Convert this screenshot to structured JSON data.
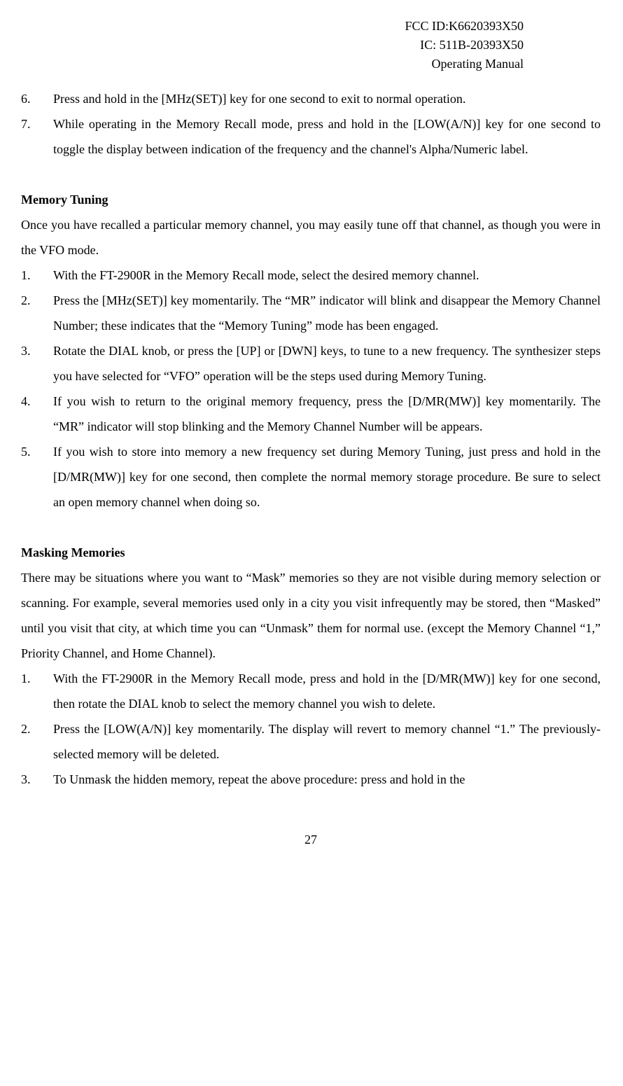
{
  "header": {
    "fcc": "FCC ID:K6620393X50",
    "ic": "IC: 511B-20393X50",
    "manual": "Operating Manual"
  },
  "list_top": {
    "item6": "Press and hold in the [MHz(SET)] key for one second to exit to normal operation.",
    "item7": "While operating in the Memory Recall mode, press and hold in the [LOW(A/N)] key for one second to toggle the display between indication of the frequency and the channel's Alpha/Numeric label."
  },
  "section_memory_tuning": {
    "title": "Memory Tuning",
    "intro": "Once you have recalled a particular memory channel, you may easily tune off that channel, as though you were in the VFO mode.",
    "items": {
      "i1": "With the FT-2900R in the Memory Recall mode, select the desired memory channel.",
      "i2": "Press the [MHz(SET)] key momentarily. The “MR” indicator will blink and disappear the Memory Channel Number; these indicates that the “Memory Tuning” mode has been engaged.",
      "i3": "Rotate the DIAL knob, or press the [UP] or [DWN] keys, to tune to a new frequency. The synthesizer steps you have selected for “VFO” operation will be the steps used during Memory Tuning.",
      "i4": "If you wish to return to the original memory frequency, press the [D/MR(MW)] key momentarily. The “MR” indicator will stop blinking and the Memory Channel Number will be appears.",
      "i5": "If you wish to store into memory a new frequency set during Memory Tuning, just press and hold in the [D/MR(MW)] key for one second, then complete the normal memory storage procedure. Be sure to select an open memory channel when doing so."
    }
  },
  "section_masking": {
    "title": "Masking Memories",
    "intro": "There may be situations where you want to “Mask” memories so they are not visible during memory selection or scanning. For example, several memories used only in a city you visit infrequently may be stored, then “Masked” until you visit that city, at which time you can “Unmask” them for normal use. (except the Memory Channel “1,” Priority Channel, and Home Channel).",
    "items": {
      "i1": "With the FT-2900R in the Memory Recall mode, press and hold in the [D/MR(MW)] key for one second, then rotate the DIAL knob to select the memory channel you wish to delete.",
      "i2": "Press the [LOW(A/N)] key momentarily. The display will revert to memory channel “1.” The previously-selected memory will be deleted.",
      "i3": "To Unmask the hidden memory, repeat the above procedure: press and hold in the"
    }
  },
  "page_number": "27"
}
